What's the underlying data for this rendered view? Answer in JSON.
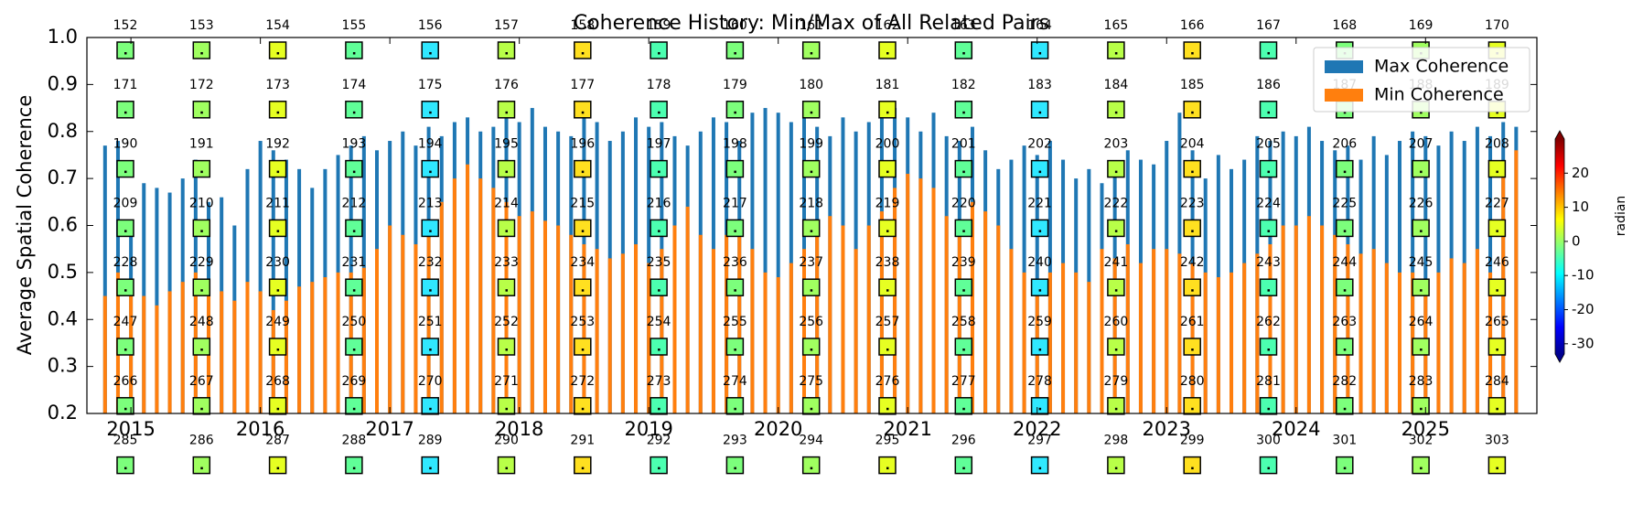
{
  "chart_data": {
    "type": "bar",
    "title": "Coherence History: Min/Max of All Related Pairs",
    "y_label": "Average Spatial Coherence",
    "x": [
      2014.8,
      2014.9,
      2015.0,
      2015.1,
      2015.2,
      2015.3,
      2015.4,
      2015.5,
      2015.6,
      2015.7,
      2015.8,
      2015.9,
      2016.0,
      2016.1,
      2016.2,
      2016.3,
      2016.4,
      2016.5,
      2016.6,
      2016.7,
      2016.8,
      2016.9,
      2017.0,
      2017.1,
      2017.2,
      2017.3,
      2017.4,
      2017.5,
      2017.6,
      2017.7,
      2017.8,
      2017.9,
      2018.0,
      2018.1,
      2018.2,
      2018.3,
      2018.4,
      2018.5,
      2018.6,
      2018.7,
      2018.8,
      2018.9,
      2019.0,
      2019.1,
      2019.2,
      2019.3,
      2019.4,
      2019.5,
      2019.6,
      2019.7,
      2019.8,
      2019.9,
      2020.0,
      2020.1,
      2020.2,
      2020.3,
      2020.4,
      2020.5,
      2020.6,
      2020.7,
      2020.8,
      2020.9,
      2021.0,
      2021.1,
      2021.2,
      2021.3,
      2021.4,
      2021.5,
      2021.6,
      2021.7,
      2021.8,
      2021.9,
      2022.0,
      2022.1,
      2022.2,
      2022.3,
      2022.4,
      2022.5,
      2022.6,
      2022.7,
      2022.8,
      2022.9,
      2023.0,
      2023.1,
      2023.2,
      2023.3,
      2023.4,
      2023.5,
      2023.6,
      2023.7,
      2023.8,
      2023.9,
      2024.0,
      2024.1,
      2024.2,
      2024.3,
      2024.4,
      2024.5,
      2024.6,
      2024.7,
      2024.8,
      2024.9,
      2025.0,
      2025.1,
      2025.2,
      2025.3,
      2025.4,
      2025.5,
      2025.6,
      2025.7
    ],
    "series": [
      {
        "name": "Max Coherence",
        "color": "#1f77b4",
        "values": [
          0.77,
          0.78,
          0.59,
          0.69,
          0.68,
          0.67,
          0.7,
          0.74,
          0.65,
          0.66,
          0.6,
          0.72,
          0.78,
          0.76,
          0.74,
          0.72,
          0.68,
          0.72,
          0.75,
          0.77,
          0.79,
          0.76,
          0.78,
          0.8,
          0.77,
          0.81,
          0.79,
          0.82,
          0.83,
          0.8,
          0.81,
          0.84,
          0.82,
          0.85,
          0.81,
          0.8,
          0.79,
          0.83,
          0.82,
          0.78,
          0.8,
          0.83,
          0.81,
          0.82,
          0.79,
          0.77,
          0.8,
          0.83,
          0.82,
          0.78,
          0.84,
          0.85,
          0.84,
          0.82,
          0.85,
          0.81,
          0.79,
          0.83,
          0.8,
          0.82,
          0.84,
          0.85,
          0.83,
          0.8,
          0.84,
          0.79,
          0.78,
          0.81,
          0.76,
          0.72,
          0.74,
          0.77,
          0.75,
          0.78,
          0.74,
          0.7,
          0.72,
          0.69,
          0.71,
          0.76,
          0.74,
          0.73,
          0.78,
          0.84,
          0.76,
          0.7,
          0.75,
          0.72,
          0.74,
          0.79,
          0.78,
          0.8,
          0.79,
          0.81,
          0.78,
          0.76,
          0.77,
          0.74,
          0.79,
          0.75,
          0.78,
          0.8,
          0.79,
          0.77,
          0.8,
          0.78,
          0.81,
          0.79,
          0.82,
          0.81
        ]
      },
      {
        "name": "Min Coherence",
        "color": "#ff7f0e",
        "values": [
          0.45,
          0.5,
          0.47,
          0.45,
          0.43,
          0.46,
          0.48,
          0.5,
          0.47,
          0.46,
          0.44,
          0.48,
          0.46,
          0.42,
          0.44,
          0.47,
          0.48,
          0.49,
          0.5,
          0.5,
          0.51,
          0.55,
          0.6,
          0.58,
          0.56,
          0.6,
          0.65,
          0.7,
          0.73,
          0.7,
          0.68,
          0.65,
          0.62,
          0.63,
          0.61,
          0.6,
          0.58,
          0.56,
          0.55,
          0.53,
          0.54,
          0.56,
          0.52,
          0.55,
          0.6,
          0.64,
          0.58,
          0.55,
          0.58,
          0.6,
          0.55,
          0.5,
          0.49,
          0.52,
          0.55,
          0.58,
          0.62,
          0.6,
          0.55,
          0.6,
          0.63,
          0.68,
          0.71,
          0.7,
          0.68,
          0.62,
          0.6,
          0.65,
          0.63,
          0.6,
          0.55,
          0.5,
          0.47,
          0.5,
          0.52,
          0.5,
          0.48,
          0.55,
          0.53,
          0.56,
          0.52,
          0.55,
          0.55,
          0.54,
          0.52,
          0.5,
          0.49,
          0.5,
          0.52,
          0.54,
          0.56,
          0.6,
          0.6,
          0.62,
          0.6,
          0.58,
          0.56,
          0.54,
          0.55,
          0.52,
          0.5,
          0.5,
          0.48,
          0.5,
          0.53,
          0.52,
          0.55,
          0.5,
          0.72,
          0.76
        ]
      }
    ],
    "xlim": [
      2014.66,
      2025.86
    ],
    "xticks": [
      2015,
      2016,
      2017,
      2018,
      2019,
      2020,
      2021,
      2022,
      2023,
      2024,
      2025
    ],
    "ylim": [
      0.2,
      1.0
    ],
    "yticks": [
      0.2,
      0.3,
      0.4,
      0.5,
      0.6,
      0.7,
      0.8,
      0.9,
      {
        "value": 1.0,
        "label": "1.0"
      }
    ],
    "legend": "upper right",
    "thumbnail_labels": [
      152,
      153,
      154,
      155,
      156,
      157,
      158,
      159,
      160,
      161,
      162,
      163,
      164,
      165,
      166,
      167,
      168,
      169,
      170,
      171,
      172,
      173,
      174,
      175,
      176,
      177,
      178,
      179,
      180,
      181,
      182,
      183,
      184,
      185,
      186,
      187,
      188,
      189,
      190,
      191,
      192,
      193,
      194,
      195,
      196,
      197,
      198,
      199,
      200,
      201,
      202,
      203,
      204,
      205,
      206,
      207,
      208,
      209,
      210,
      211,
      212,
      213,
      214,
      215,
      216,
      217,
      218,
      219,
      220,
      221,
      222,
      223,
      224,
      225,
      226,
      227,
      228,
      229,
      230,
      231,
      232,
      233,
      234,
      235,
      236,
      237,
      238,
      239,
      240,
      241,
      242,
      243,
      244,
      245,
      246,
      247,
      248,
      249,
      250,
      251,
      252,
      253,
      254,
      255,
      256,
      257,
      258,
      259,
      260,
      261,
      262,
      263,
      264,
      265,
      266,
      267,
      268,
      269,
      270,
      271,
      272,
      273,
      274,
      275,
      276,
      277,
      278,
      279,
      280,
      281,
      282,
      283,
      284,
      285,
      286,
      287,
      288,
      289,
      290,
      291,
      292,
      293,
      294,
      295,
      296,
      297,
      298,
      299,
      300,
      301,
      302,
      303
    ],
    "colorbar": {
      "label": "radian",
      "lim": [
        -33,
        30
      ],
      "ticks": [
        20,
        10,
        0,
        -10,
        -20,
        -30
      ]
    }
  }
}
